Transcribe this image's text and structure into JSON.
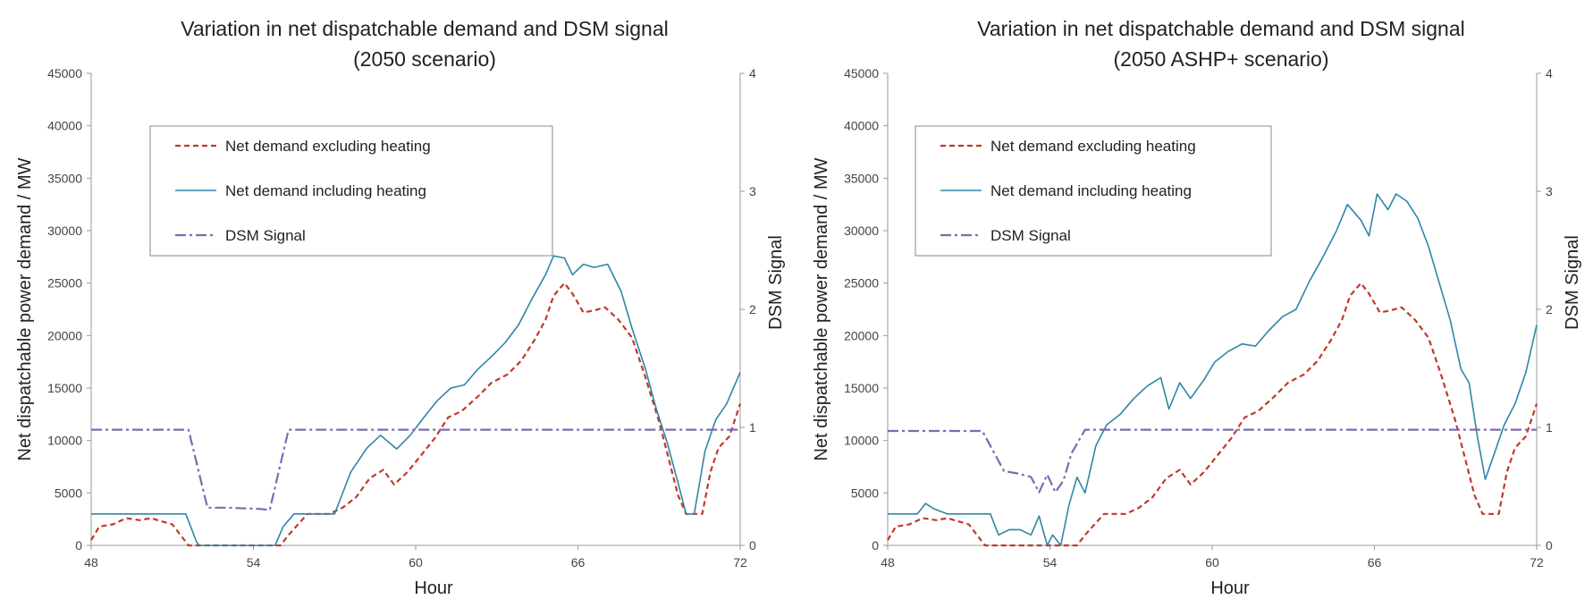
{
  "chart_data": [
    {
      "type": "line",
      "title": "Variation in net dispatchable demand and DSM signal",
      "subtitle": "(2050 scenario)",
      "xlabel": "Hour",
      "ylabel": "Net dispatchable power demand / MW",
      "y2label": "DSM Signal",
      "xlim": [
        48,
        72
      ],
      "ylim": [
        0,
        45000
      ],
      "y2lim": [
        0,
        4
      ],
      "xticks": [
        "48",
        "54",
        "60",
        "66",
        "72"
      ],
      "yticks": [
        "0",
        "5000",
        "10000",
        "15000",
        "20000",
        "25000",
        "30000",
        "35000",
        "40000",
        "45000"
      ],
      "y2ticks": [
        "0",
        "1",
        "2",
        "3",
        "4"
      ],
      "grid": false,
      "legend_position": "top-left",
      "series": [
        {
          "name": "Net demand excluding heating",
          "axis": "left",
          "color": "#c0392b",
          "style": "dashed",
          "x": [
            48,
            48.3,
            48.8,
            49.3,
            49.8,
            50.2,
            50.6,
            51,
            51.3,
            51.6,
            52,
            53,
            54,
            54.5,
            55,
            55.3,
            56,
            56.8,
            57.3,
            57.8,
            58.3,
            58.8,
            59.2,
            59.7,
            60.2,
            60.7,
            61.2,
            61.7,
            62.3,
            62.8,
            63.4,
            63.9,
            64.4,
            64.8,
            65.1,
            65.5,
            65.8,
            66.2,
            66.6,
            67,
            67.5,
            68,
            68.5,
            69,
            69.4,
            69.7,
            70,
            70.3,
            70.6,
            70.9,
            71.2,
            71.6,
            72
          ],
          "y": [
            500,
            1800,
            2000,
            2600,
            2400,
            2600,
            2300,
            2000,
            1000,
            0,
            0,
            0,
            0,
            0,
            0,
            1000,
            3000,
            3000,
            3600,
            4600,
            6400,
            7200,
            5800,
            7000,
            8600,
            10200,
            12200,
            12800,
            14200,
            15500,
            16300,
            17600,
            19600,
            21500,
            23800,
            25000,
            24000,
            22200,
            22400,
            22700,
            21500,
            19800,
            16000,
            11800,
            7800,
            4800,
            3000,
            3000,
            3000,
            7000,
            9300,
            10400,
            13500
          ]
        },
        {
          "name": "Net demand including heating",
          "axis": "left",
          "color": "#2f86a6",
          "style": "solid",
          "x": [
            48,
            49.5,
            50.5,
            51,
            51.5,
            51.9,
            52,
            53,
            54,
            54.8,
            55.1,
            55.5,
            56,
            57,
            57.6,
            58.2,
            58.7,
            59.3,
            59.8,
            60.3,
            60.8,
            61.3,
            61.8,
            62.3,
            62.8,
            63.3,
            63.8,
            64.3,
            64.8,
            65.1,
            65.5,
            65.8,
            66.2,
            66.6,
            67.1,
            67.6,
            68,
            68.5,
            68.9,
            69.3,
            69.7,
            70,
            70.3,
            70.7,
            71.1,
            71.5,
            72
          ],
          "y": [
            3000,
            3000,
            3000,
            3000,
            3000,
            300,
            0,
            0,
            0,
            0,
            1800,
            3000,
            3000,
            3000,
            7000,
            9300,
            10500,
            9200,
            10500,
            12200,
            13800,
            15000,
            15300,
            16800,
            18000,
            19300,
            21000,
            23500,
            25800,
            27600,
            27400,
            25800,
            26800,
            26500,
            26800,
            24200,
            20700,
            16800,
            13000,
            9800,
            6000,
            3000,
            3000,
            9000,
            12000,
            13500,
            16500
          ]
        },
        {
          "name": "DSM Signal",
          "axis": "right",
          "color": "#7b6cb0",
          "style": "dashdot",
          "x": [
            48,
            49.5,
            51.6,
            52.3,
            53,
            54.2,
            54.6,
            55.3,
            57,
            60,
            63,
            66,
            69,
            72
          ],
          "y": [
            0.98,
            0.98,
            0.98,
            0.32,
            0.32,
            0.31,
            0.3,
            0.98,
            0.98,
            0.98,
            0.98,
            0.98,
            0.98,
            0.98
          ]
        }
      ]
    },
    {
      "type": "line",
      "title": "Variation in net dispatchable demand and DSM signal",
      "subtitle": "(2050 ASHP+ scenario)",
      "xlabel": "Hour",
      "ylabel": "Net dispatchable power demand / MW",
      "y2label": "DSM Signal",
      "xlim": [
        48,
        72
      ],
      "ylim": [
        0,
        45000
      ],
      "y2lim": [
        0,
        4
      ],
      "xticks": [
        "48",
        "54",
        "60",
        "66",
        "72"
      ],
      "yticks": [
        "0",
        "5000",
        "10000",
        "15000",
        "20000",
        "25000",
        "30000",
        "35000",
        "40000",
        "45000"
      ],
      "y2ticks": [
        "0",
        "1",
        "2",
        "3",
        "4"
      ],
      "grid": false,
      "legend_position": "top-left",
      "series": [
        {
          "name": "Net demand excluding heating",
          "axis": "left",
          "color": "#c0392b",
          "style": "dashed",
          "x": [
            48,
            48.3,
            48.8,
            49.3,
            49.8,
            50.2,
            50.6,
            51,
            51.3,
            51.6,
            52,
            53,
            54,
            54.5,
            55,
            55.3,
            56,
            56.8,
            57.3,
            57.8,
            58.3,
            58.8,
            59.2,
            59.7,
            60.2,
            60.7,
            61.2,
            61.7,
            62.3,
            62.8,
            63.4,
            63.9,
            64.4,
            64.8,
            65.1,
            65.5,
            65.8,
            66.2,
            66.6,
            67,
            67.5,
            68,
            68.5,
            69,
            69.4,
            69.7,
            70,
            70.3,
            70.6,
            70.9,
            71.2,
            71.6,
            72
          ],
          "y": [
            500,
            1800,
            2000,
            2600,
            2400,
            2600,
            2300,
            2000,
            1000,
            0,
            0,
            0,
            0,
            0,
            0,
            1000,
            3000,
            3000,
            3600,
            4600,
            6400,
            7200,
            5800,
            7000,
            8600,
            10200,
            12200,
            12800,
            14200,
            15500,
            16300,
            17600,
            19600,
            21500,
            23800,
            25000,
            24000,
            22200,
            22400,
            22700,
            21500,
            19800,
            16000,
            11800,
            7800,
            4800,
            3000,
            3000,
            3000,
            7000,
            9300,
            10400,
            13500
          ]
        },
        {
          "name": "Net demand including heating",
          "axis": "left",
          "color": "#2f86a6",
          "style": "solid",
          "x": [
            48,
            49.1,
            49.4,
            49.7,
            50.2,
            50.8,
            51.4,
            51.8,
            52.1,
            52.5,
            52.9,
            53.3,
            53.6,
            53.9,
            54.1,
            54.4,
            54.7,
            55,
            55.3,
            55.7,
            56.1,
            56.6,
            57.1,
            57.6,
            58.1,
            58.4,
            58.8,
            59.2,
            59.7,
            60.1,
            60.6,
            61.1,
            61.6,
            62.1,
            62.6,
            63.1,
            63.6,
            64.1,
            64.6,
            65,
            65.5,
            65.8,
            66.1,
            66.5,
            66.8,
            67.2,
            67.6,
            68,
            68.4,
            68.8,
            69.2,
            69.5,
            69.8,
            70.1,
            70.4,
            70.8,
            71.2,
            71.6,
            72
          ],
          "y": [
            3000,
            3000,
            4000,
            3500,
            3000,
            3000,
            3000,
            3000,
            1000,
            1500,
            1500,
            1000,
            2800,
            0,
            1000,
            0,
            3800,
            6500,
            5000,
            9500,
            11500,
            12500,
            14000,
            15200,
            16000,
            13000,
            15500,
            14000,
            15800,
            17500,
            18500,
            19200,
            19000,
            20500,
            21800,
            22500,
            25200,
            27500,
            30000,
            32500,
            31000,
            29500,
            33500,
            32000,
            33500,
            32800,
            31200,
            28500,
            25000,
            21500,
            16800,
            15500,
            10500,
            6300,
            8500,
            11500,
            13500,
            16500,
            21000
          ]
        },
        {
          "name": "DSM Signal",
          "axis": "right",
          "color": "#7b6cb0",
          "style": "dashdot",
          "x": [
            48,
            50,
            51.5,
            52.3,
            52.8,
            53.3,
            53.6,
            53.9,
            54.2,
            54.5,
            54.8,
            55.3,
            57,
            60,
            63,
            66,
            69,
            72
          ],
          "y": [
            0.97,
            0.97,
            0.97,
            0.63,
            0.61,
            0.58,
            0.45,
            0.6,
            0.45,
            0.55,
            0.78,
            0.98,
            0.98,
            0.98,
            0.98,
            0.98,
            0.98,
            0.98
          ]
        }
      ]
    }
  ]
}
